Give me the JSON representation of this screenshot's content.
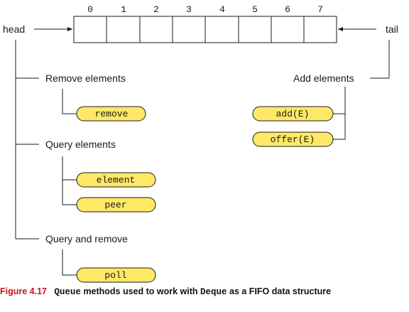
{
  "diagram": {
    "indices": [
      "0",
      "1",
      "2",
      "3",
      "4",
      "5",
      "6",
      "7"
    ],
    "head_label": "head",
    "tail_label": "tail",
    "groups": {
      "remove": {
        "label": "Remove elements",
        "methods": [
          "remove"
        ]
      },
      "query": {
        "label": "Query elements",
        "methods": [
          "element",
          "peer"
        ]
      },
      "query_remove": {
        "label": "Query and remove",
        "methods": [
          "poll"
        ]
      },
      "add": {
        "label": "Add elements",
        "methods": [
          "add(E)",
          "offer(E)"
        ]
      }
    },
    "colors": {
      "pill_fill": "#ffe866",
      "stroke": "#1a1a1a",
      "caption_accent": "#c4161c"
    }
  },
  "caption": {
    "figure_label": "Figure 4.17",
    "part1": "Queue",
    "part2": " methods used to work with ",
    "part3": "Deque",
    "part4": " as a FIFO data structure"
  }
}
